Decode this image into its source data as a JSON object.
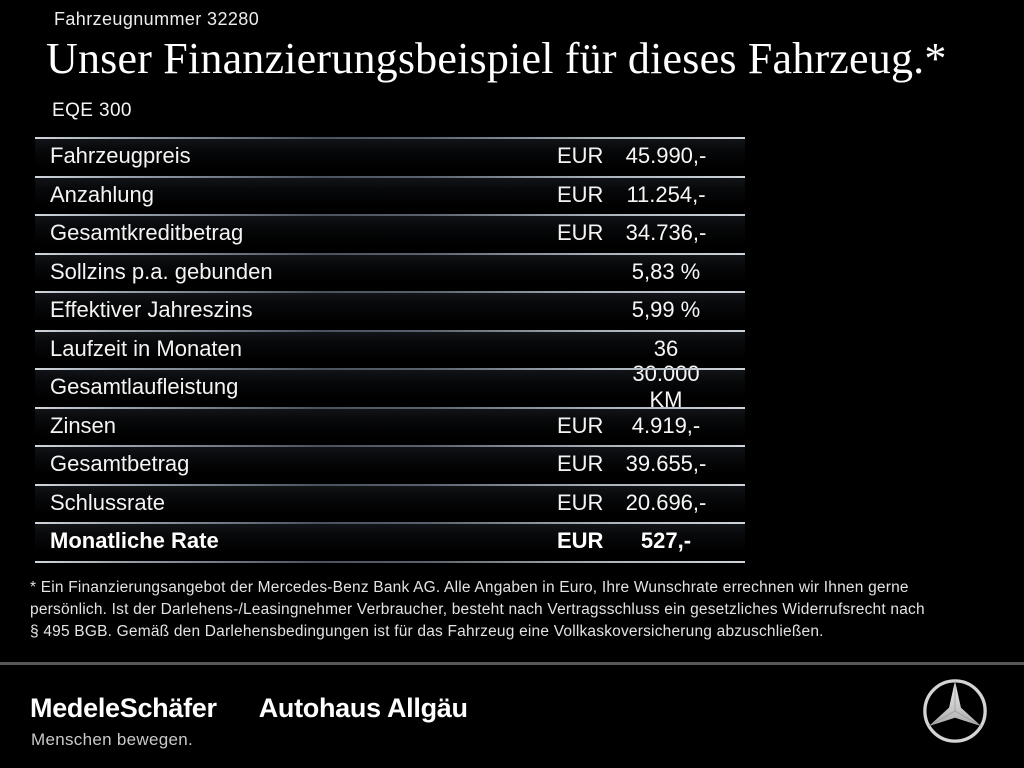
{
  "header": {
    "vehicle_number": "Fahrzeugnummer 32280",
    "title": "Unser Finanzierungsbeispiel für dieses Fahrzeug.*",
    "model": "EQE 300"
  },
  "financing_table": {
    "rows": [
      {
        "label": "Fahrzeugpreis",
        "currency": "EUR",
        "value": "45.990,-",
        "emphasis": false
      },
      {
        "label": "Anzahlung",
        "currency": "EUR",
        "value": "11.254,-",
        "emphasis": false
      },
      {
        "label": "Gesamtkreditbetrag",
        "currency": "EUR",
        "value": "34.736,-",
        "emphasis": false
      },
      {
        "label": "Sollzins p.a. gebunden",
        "currency": "",
        "value": "5,83 %",
        "emphasis": false
      },
      {
        "label": "Effektiver Jahreszins",
        "currency": "",
        "value": "5,99 %",
        "emphasis": false
      },
      {
        "label": "Laufzeit in Monaten",
        "currency": "",
        "value": "36",
        "emphasis": false
      },
      {
        "label": "Gesamtlaufleistung",
        "currency": "",
        "value": "30.000 KM",
        "emphasis": false
      },
      {
        "label": "Zinsen",
        "currency": "EUR",
        "value": "4.919,-",
        "emphasis": false
      },
      {
        "label": "Gesamtbetrag",
        "currency": "EUR",
        "value": "39.655,-",
        "emphasis": false
      },
      {
        "label": "Schlussrate",
        "currency": "EUR",
        "value": "20.696,-",
        "emphasis": false
      },
      {
        "label": "Monatliche Rate",
        "currency": "EUR",
        "value": "527,-",
        "emphasis": true
      }
    ]
  },
  "footnote": {
    "lines": [
      "* Ein Finanzierungsangebot der Mercedes-Benz Bank AG. Alle Angaben in Euro, Ihre Wunschrate errechnen wir Ihnen gerne",
      "persönlich. Ist der Darlehens-/Leasingnehmer Verbraucher, besteht nach Vertragsschluss ein gesetzliches Widerrufsrecht nach",
      "§ 495 BGB. Gemäß den Darlehensbedingungen ist für das Fahrzeug eine Vollkaskoversicherung abzuschließen."
    ]
  },
  "footer": {
    "dealer_logo_primary": "MedeleSchäfer",
    "dealer_logo_secondary": "Autohaus Allgäu",
    "dealer_tagline": "Menschen bewegen.",
    "brand_icon": "mercedes-star-icon"
  },
  "colors": {
    "background": "#000000",
    "text": "#f2f2f2",
    "separator_line": "#aab2ba",
    "footer_divider": "#575757",
    "star_silver": "#d9d9d9"
  }
}
